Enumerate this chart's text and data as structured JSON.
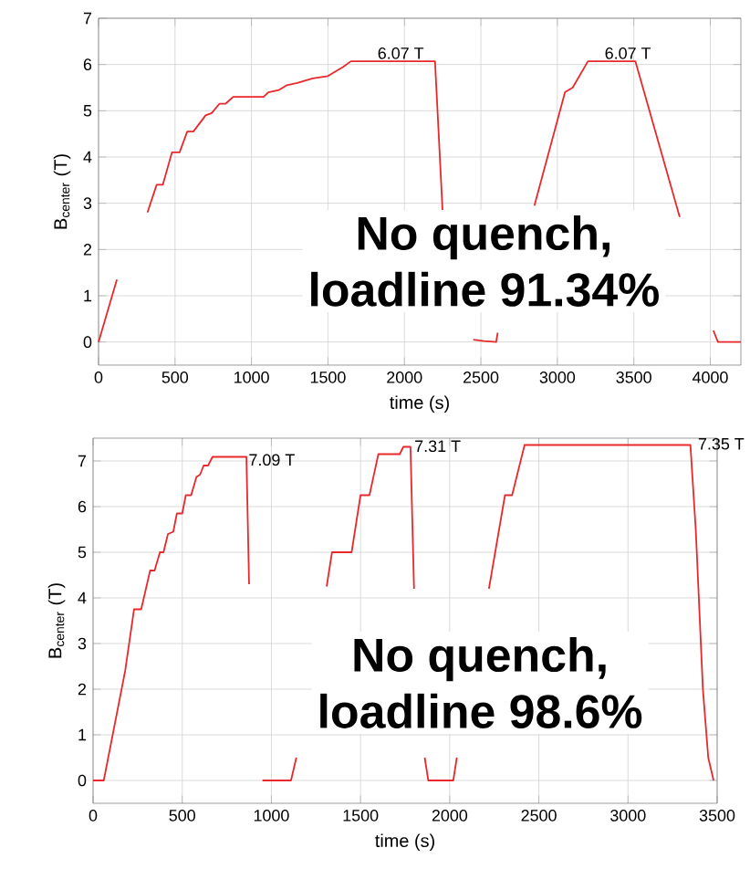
{
  "chart_data": [
    {
      "type": "line",
      "xlabel": "time (s)",
      "ylabel": "B$_{center}$ (T)",
      "series": [
        {
          "color": "#e8282b",
          "x": [
            0,
            120,
            160,
            320,
            380,
            420,
            480,
            530,
            580,
            620,
            700,
            740,
            790,
            830,
            880,
            1080,
            1110,
            1180,
            1230,
            1300,
            1400,
            1500,
            1550,
            1600,
            1650,
            2200,
            2250,
            2300,
            2450,
            2520,
            2600,
            2610,
            2700,
            2850,
            3050,
            3100,
            3200,
            3510,
            3800,
            3900,
            4020,
            4050,
            4200
          ],
          "values": [
            0,
            1.35,
            null,
            2.8,
            3.4,
            3.4,
            4.1,
            4.1,
            4.55,
            4.55,
            4.9,
            4.95,
            5.15,
            5.15,
            5.3,
            5.3,
            5.4,
            5.45,
            5.55,
            5.6,
            5.7,
            5.75,
            5.85,
            5.95,
            6.07,
            6.07,
            2.8,
            null,
            0.05,
            0.02,
            0,
            0.2,
            null,
            2.95,
            5.4,
            5.5,
            6.07,
            6.07,
            2.7,
            null,
            0.25,
            0,
            0
          ]
        }
      ],
      "xlim": [
        0,
        4200
      ],
      "ylim": [
        -0.5,
        7
      ],
      "xticks": [
        0,
        500,
        1000,
        1500,
        2000,
        2500,
        3000,
        3500,
        4000
      ],
      "yticks": [
        0,
        1,
        2,
        3,
        4,
        5,
        6,
        7
      ],
      "grid": true,
      "line_style": "solid",
      "marker": "none",
      "annotations": [
        {
          "text": "6.07 T",
          "x": 1810,
          "y": 6.07
        },
        {
          "text": "6.07 T",
          "x": 3295,
          "y": 6.07
        },
        "**No quench,**",
        "**loadline 91.34%**"
      ]
    },
    {
      "type": "line",
      "xlabel": "time (s)",
      "ylabel": "B$_{center}$ (T)",
      "series": [
        {
          "color": "#e8282b",
          "x": [
            0,
            60,
            180,
            230,
            270,
            320,
            345,
            375,
            395,
            420,
            450,
            470,
            500,
            520,
            550,
            580,
            600,
            620,
            645,
            670,
            860,
            875,
            900,
            950,
            1110,
            1140,
            1200,
            1310,
            1340,
            1450,
            1500,
            1550,
            1600,
            1720,
            1740,
            1780,
            1800,
            1830,
            1860,
            1880,
            2020,
            2040,
            2100,
            2220,
            2310,
            2350,
            2420,
            3350,
            3380,
            3420,
            3450,
            3480
          ],
          "values": [
            0,
            0,
            2.4,
            3.75,
            3.75,
            4.6,
            4.6,
            5.0,
            5.0,
            5.4,
            5.45,
            5.85,
            5.85,
            6.25,
            6.25,
            6.65,
            6.7,
            6.9,
            6.9,
            7.09,
            7.09,
            4.3,
            null,
            0,
            0,
            0.5,
            null,
            4.25,
            5.0,
            5.0,
            6.25,
            6.25,
            7.15,
            7.15,
            7.31,
            7.31,
            4.2,
            null,
            0.5,
            0,
            0,
            0.5,
            null,
            4.2,
            6.25,
            6.25,
            7.35,
            7.35,
            5.5,
            2,
            0.5,
            0
          ]
        }
      ],
      "xlim": [
        0,
        3500
      ],
      "ylim": [
        -0.5,
        7.5
      ],
      "xticks": [
        0,
        500,
        1000,
        1500,
        2000,
        2500,
        3000,
        3500
      ],
      "yticks": [
        0,
        1,
        2,
        3,
        4,
        5,
        6,
        7
      ],
      "grid": true,
      "line_style": "solid",
      "marker": "none",
      "annotations": [
        {
          "text": "7.09 T",
          "x": 860,
          "y": 6.85
        },
        {
          "text": "7.31 T",
          "x": 1790,
          "y": 7.15
        },
        {
          "text": "7.35 T",
          "x": 3380,
          "y": 7.2
        },
        "**No quench,**",
        "**loadline 98.6%**"
      ]
    }
  ]
}
